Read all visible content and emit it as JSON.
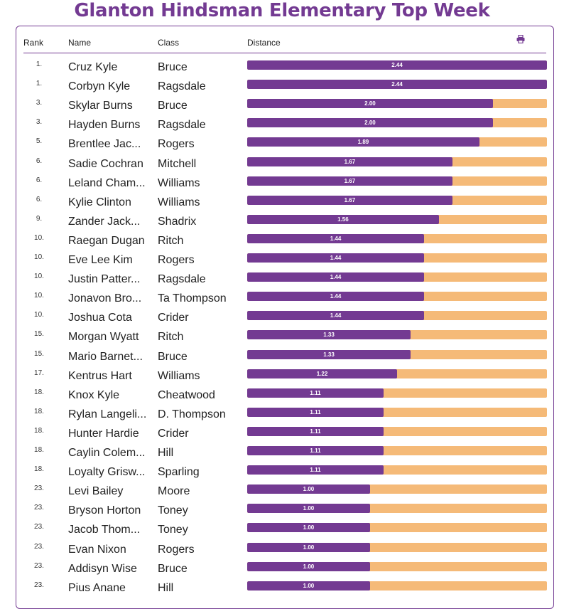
{
  "title": "Glanton Hindsman Elementary Top Week",
  "header": {
    "rank": "Rank",
    "name": "Name",
    "class": "Class",
    "distance": "Distance",
    "print_icon": "printer-icon"
  },
  "colors": {
    "accent": "#733a92",
    "track": "#f5ba78"
  },
  "max_distance": 2.44,
  "rows": [
    {
      "rank": "1.",
      "name": "Cruz Kyle",
      "class": "Bruce",
      "distance": "2.44"
    },
    {
      "rank": "1.",
      "name": "Corbyn Kyle",
      "class": "Ragsdale",
      "distance": "2.44"
    },
    {
      "rank": "3.",
      "name": "Skylar Burns",
      "class": "Bruce",
      "distance": "2.00"
    },
    {
      "rank": "3.",
      "name": "Hayden Burns",
      "class": "Ragsdale",
      "distance": "2.00"
    },
    {
      "rank": "5.",
      "name": "Brentlee Jac...",
      "class": "Rogers",
      "distance": "1.89"
    },
    {
      "rank": "6.",
      "name": "Sadie Cochran",
      "class": "Mitchell",
      "distance": "1.67"
    },
    {
      "rank": "6.",
      "name": "Leland Cham...",
      "class": "Williams",
      "distance": "1.67"
    },
    {
      "rank": "6.",
      "name": "Kylie Clinton",
      "class": "Williams",
      "distance": "1.67"
    },
    {
      "rank": "9.",
      "name": "Zander Jack...",
      "class": "Shadrix",
      "distance": "1.56"
    },
    {
      "rank": "10.",
      "name": "Raegan Dugan",
      "class": "Ritch",
      "distance": "1.44"
    },
    {
      "rank": "10.",
      "name": "Eve Lee Kim",
      "class": "Rogers",
      "distance": "1.44"
    },
    {
      "rank": "10.",
      "name": "Justin Patter...",
      "class": "Ragsdale",
      "distance": "1.44"
    },
    {
      "rank": "10.",
      "name": "Jonavon Bro...",
      "class": "Ta Thompson",
      "distance": "1.44"
    },
    {
      "rank": "10.",
      "name": "Joshua Cota",
      "class": "Crider",
      "distance": "1.44"
    },
    {
      "rank": "15.",
      "name": "Morgan Wyatt",
      "class": "Ritch",
      "distance": "1.33"
    },
    {
      "rank": "15.",
      "name": "Mario Barnet...",
      "class": "Bruce",
      "distance": "1.33"
    },
    {
      "rank": "17.",
      "name": "Kentrus Hart",
      "class": "Williams",
      "distance": "1.22"
    },
    {
      "rank": "18.",
      "name": "Knox Kyle",
      "class": "Cheatwood",
      "distance": "1.11"
    },
    {
      "rank": "18.",
      "name": "Rylan Langeli...",
      "class": "D. Thompson",
      "distance": "1.11"
    },
    {
      "rank": "18.",
      "name": "Hunter Hardie",
      "class": "Crider",
      "distance": "1.11"
    },
    {
      "rank": "18.",
      "name": "Caylin Colem...",
      "class": "Hill",
      "distance": "1.11"
    },
    {
      "rank": "18.",
      "name": "Loyalty Grisw...",
      "class": "Sparling",
      "distance": "1.11"
    },
    {
      "rank": "23.",
      "name": "Levi Bailey",
      "class": "Moore",
      "distance": "1.00"
    },
    {
      "rank": "23.",
      "name": "Bryson Horton",
      "class": "Toney",
      "distance": "1.00"
    },
    {
      "rank": "23.",
      "name": "Jacob Thom...",
      "class": "Toney",
      "distance": "1.00"
    },
    {
      "rank": "23.",
      "name": "Evan Nixon",
      "class": "Rogers",
      "distance": "1.00"
    },
    {
      "rank": "23.",
      "name": "Addisyn Wise",
      "class": "Bruce",
      "distance": "1.00"
    },
    {
      "rank": "23.",
      "name": "Pius Anane",
      "class": "Hill",
      "distance": "1.00"
    }
  ]
}
